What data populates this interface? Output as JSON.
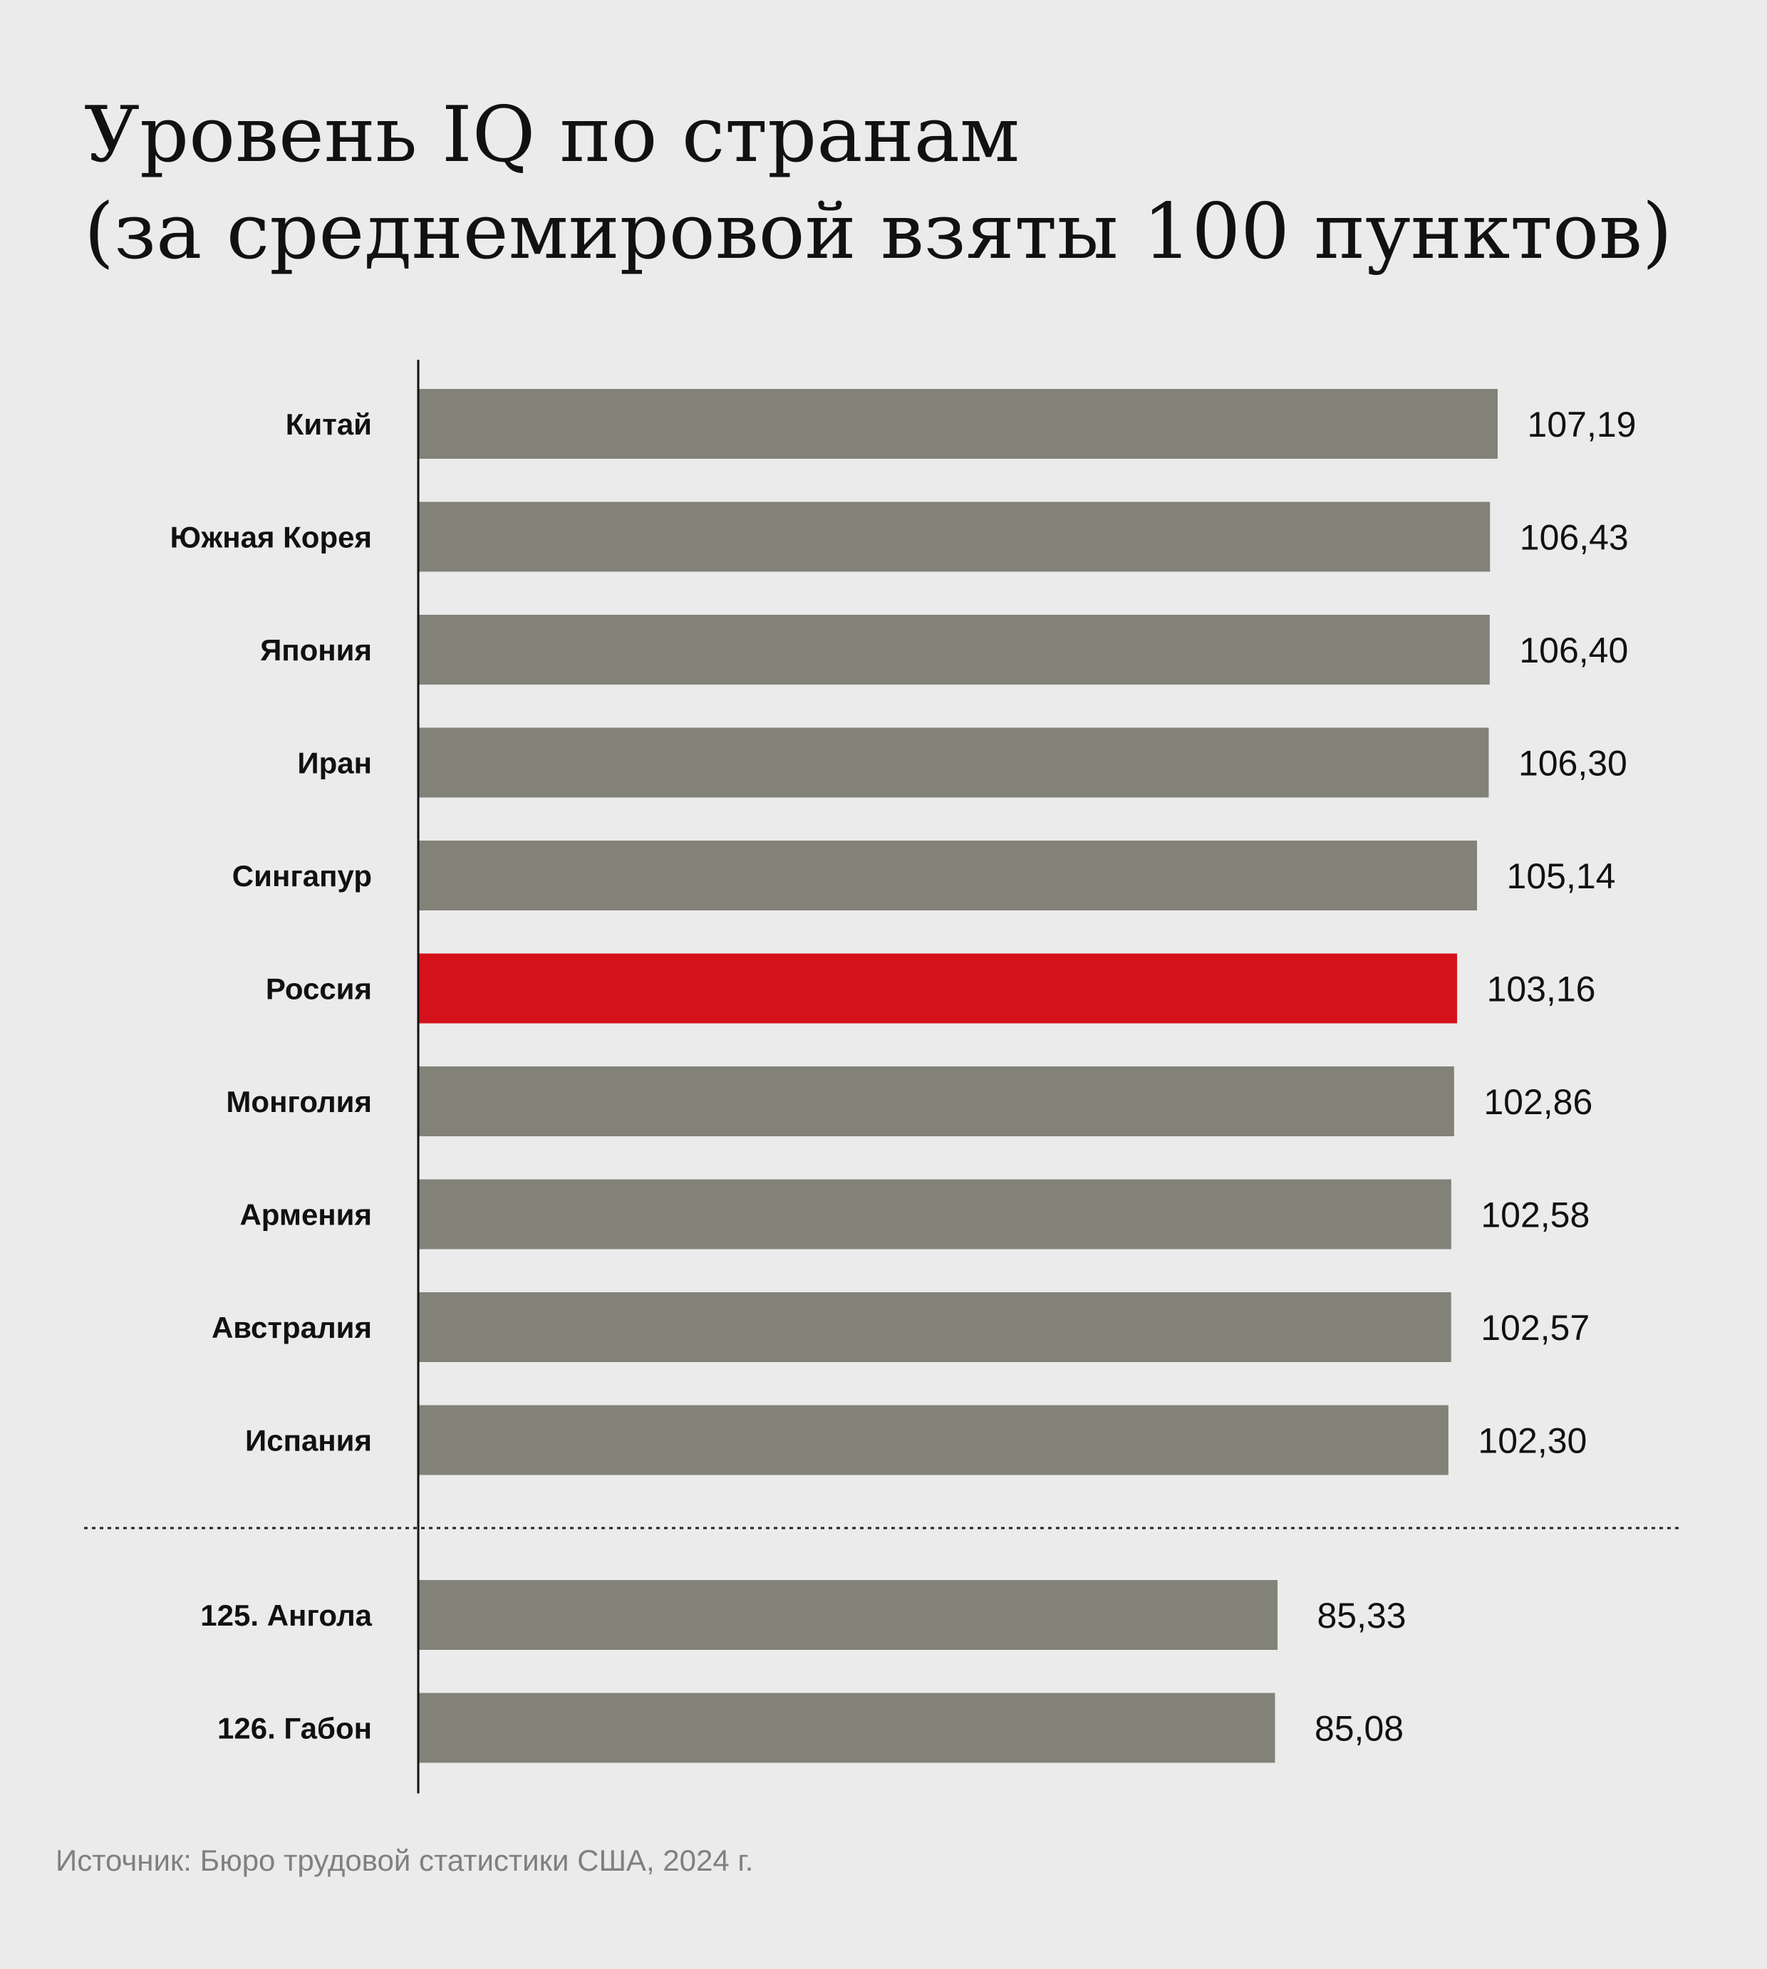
{
  "chart_data": {
    "type": "bar",
    "orientation": "horizontal",
    "title": [
      "Уровень IQ по странам",
      "(за среднемировой взяты 100 пунктов)"
    ],
    "xlabel": "",
    "ylabel": "",
    "grid": false,
    "groups": [
      {
        "categories": [
          "Китай",
          "Южная Корея",
          "Япония",
          "Иран",
          "Сингапур",
          "Россия",
          "Монголия",
          "Армения",
          "Австралия",
          "Испания"
        ],
        "values": [
          107.19,
          106.43,
          106.4,
          106.3,
          105.14,
          103.16,
          102.86,
          102.58,
          102.57,
          102.3
        ],
        "value_labels": [
          "107,19",
          "106,43",
          "106,40",
          "106,30",
          "105,14",
          "103,16",
          "102,86",
          "102,58",
          "102,57",
          "102,30"
        ]
      },
      {
        "categories": [
          "125. Ангола",
          "126. Габон"
        ],
        "values": [
          85.33,
          85.08
        ],
        "value_labels": [
          "85,33",
          "85,08"
        ]
      }
    ],
    "highlight": "Россия",
    "colors": {
      "bar": "#838279",
      "highlight": "#d4121b",
      "axis": "#111111",
      "separator": "#222222"
    }
  },
  "source": "Источник: Бюро трудовой статистики США, 2024 г."
}
